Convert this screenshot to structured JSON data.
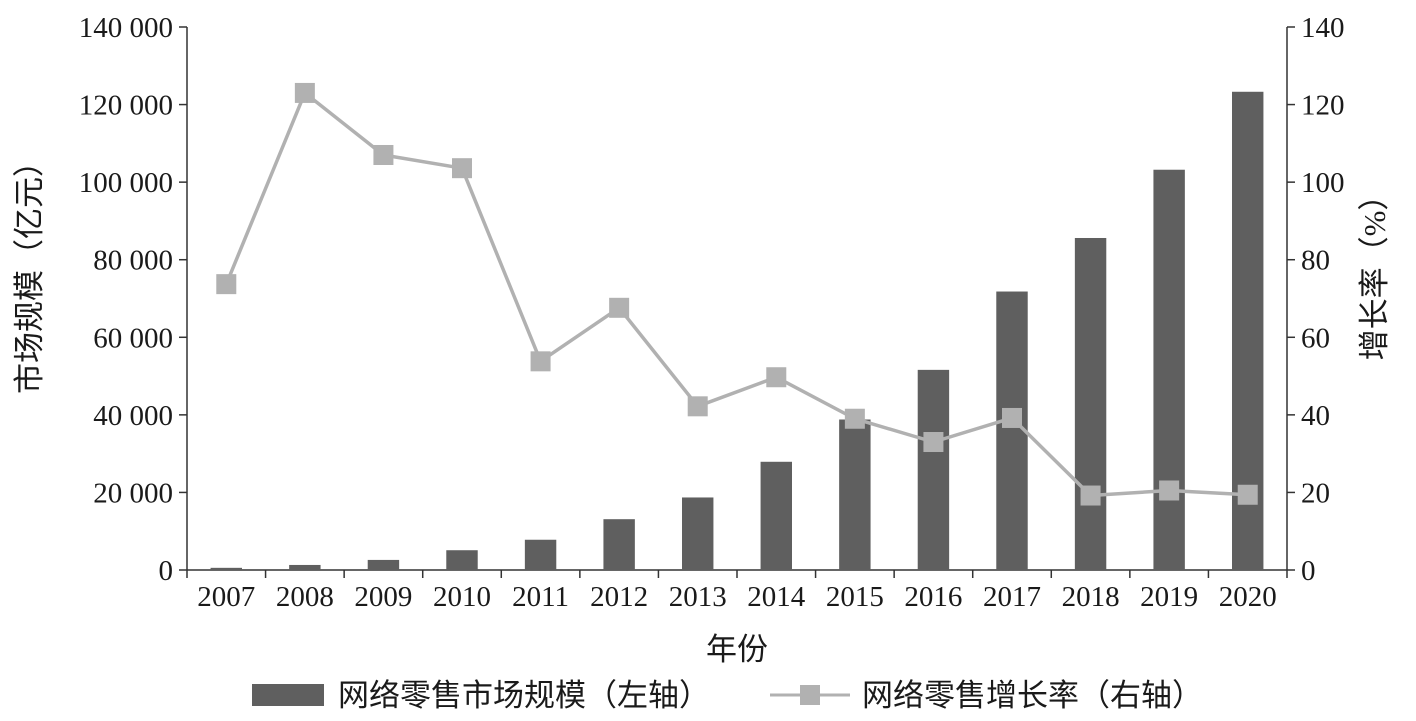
{
  "chart_data": {
    "type": "bar+line",
    "xlabel": "年份",
    "categories": [
      "2007",
      "2008",
      "2009",
      "2010",
      "2011",
      "2012",
      "2013",
      "2014",
      "2015",
      "2016",
      "2017",
      "2018",
      "2019",
      "2020"
    ],
    "left_axis": {
      "label": "市场规模（亿元）",
      "ylim": [
        0,
        140000
      ],
      "ticks": [
        "0",
        "20 000",
        "40 000",
        "60 000",
        "80 000",
        "100 000",
        "120 000",
        "140 000"
      ],
      "tick_values": [
        0,
        20000,
        40000,
        60000,
        80000,
        100000,
        120000,
        140000
      ]
    },
    "right_axis": {
      "label": "增长率（%）",
      "ylim": [
        0,
        140
      ],
      "ticks": [
        "0",
        "20",
        "40",
        "60",
        "80",
        "100",
        "120",
        "140"
      ],
      "tick_values": [
        0,
        20,
        40,
        60,
        80,
        100,
        120,
        140
      ]
    },
    "series": [
      {
        "name": "网络零售市场规模（左轴）",
        "type": "bar",
        "axis": "left",
        "color": "#5f5f5f",
        "values": [
          560,
          1300,
          2600,
          5100,
          7800,
          13100,
          18700,
          27900,
          38800,
          51600,
          71800,
          85600,
          103200,
          123300
        ]
      },
      {
        "name": "网络零售增长率（右轴）",
        "type": "line",
        "axis": "right",
        "color": "#b1b1b1",
        "values": [
          73.7,
          123.0,
          107.0,
          103.6,
          53.8,
          67.6,
          42.2,
          49.7,
          39.0,
          33.0,
          39.2,
          19.2,
          20.5,
          19.4
        ]
      }
    ],
    "legend_position": "bottom",
    "grid": false
  }
}
